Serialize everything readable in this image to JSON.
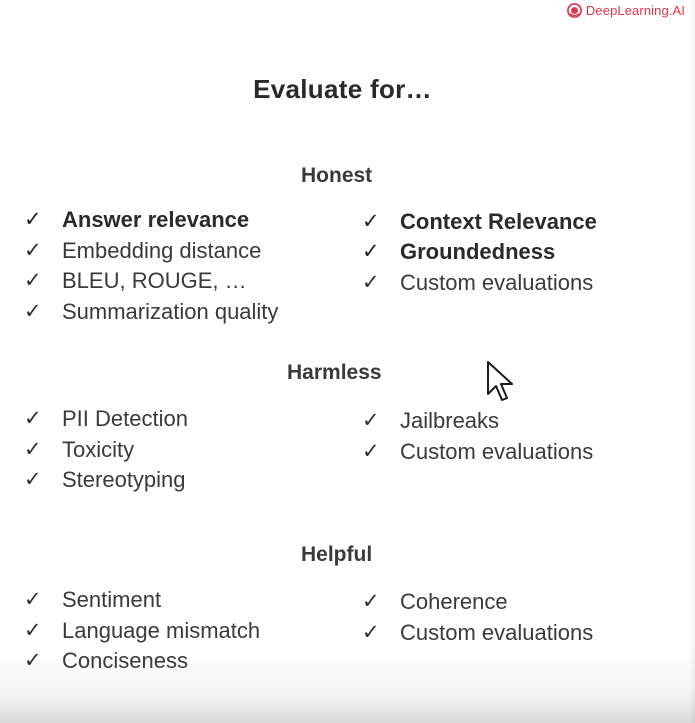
{
  "brand": {
    "name": "DeepLearning.AI",
    "color": "#e0334c"
  },
  "slide": {
    "title": "Evaluate for…",
    "check_mark": "✓",
    "sections": [
      {
        "heading": "Honest",
        "left": [
          {
            "label": "Answer relevance",
            "bold": true
          },
          {
            "label": "Embedding distance",
            "bold": false
          },
          {
            "label": "BLEU, ROUGE, …",
            "bold": false
          },
          {
            "label": "Summarization quality",
            "bold": false
          }
        ],
        "right": [
          {
            "label": "Context Relevance",
            "bold": true
          },
          {
            "label": "Groundedness",
            "bold": true
          },
          {
            "label": "Custom evaluations",
            "bold": false
          }
        ]
      },
      {
        "heading": "Harmless",
        "left": [
          {
            "label": "PII Detection",
            "bold": false
          },
          {
            "label": "Toxicity",
            "bold": false
          },
          {
            "label": "Stereotyping",
            "bold": false
          }
        ],
        "right": [
          {
            "label": "Jailbreaks",
            "bold": false
          },
          {
            "label": "Custom evaluations",
            "bold": false
          }
        ]
      },
      {
        "heading": "Helpful",
        "left": [
          {
            "label": "Sentiment",
            "bold": false
          },
          {
            "label": "Language mismatch",
            "bold": false
          },
          {
            "label": "Conciseness",
            "bold": false
          }
        ],
        "right": [
          {
            "label": "Coherence",
            "bold": false
          },
          {
            "label": "Custom evaluations",
            "bold": false
          }
        ]
      }
    ]
  },
  "cursor": {
    "icon": "mouse-pointer-icon"
  }
}
